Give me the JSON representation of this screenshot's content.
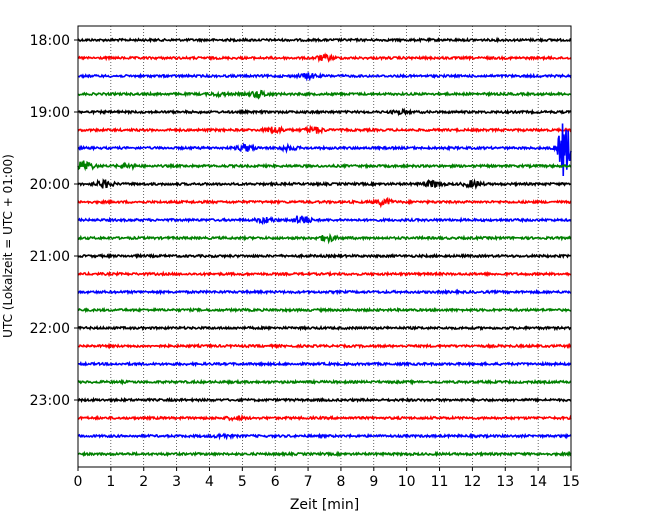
{
  "chart_data": {
    "type": "line",
    "xlabel": "Zeit  [min]",
    "ylabel": "UTC (Lokalzeit = UTC + 01:00)",
    "xlim": [
      0,
      15
    ],
    "x_ticks": [
      "0",
      "1",
      "2",
      "3",
      "4",
      "5",
      "6",
      "7",
      "8",
      "9",
      "10",
      "11",
      "12",
      "13",
      "14",
      "15"
    ],
    "y_tick_labels": [
      "18:00",
      "19:00",
      "20:00",
      "21:00",
      "22:00",
      "23:00"
    ],
    "grid": "vertical dotted lines at each minute",
    "trace_interval_min": 15,
    "first_trace": "18:00",
    "colors": [
      "#000000",
      "#ff0000",
      "#0000ff",
      "#008000"
    ],
    "traces": [
      {
        "start": "18:00",
        "events": []
      },
      {
        "start": "18:15",
        "events": [
          {
            "minute": 7.5,
            "amplitude": 0.25
          }
        ]
      },
      {
        "start": "18:30",
        "events": [
          {
            "minute": 7.0,
            "amplitude": 0.25
          }
        ]
      },
      {
        "start": "18:45",
        "events": [
          {
            "minute": 5.5,
            "amplitude": 0.3
          },
          {
            "minute": 4.3,
            "amplitude": 0.15
          }
        ]
      },
      {
        "start": "19:00",
        "events": [
          {
            "minute": 9.8,
            "amplitude": 0.15
          }
        ]
      },
      {
        "start": "19:15",
        "events": [
          {
            "minute": 6.0,
            "amplitude": 0.3
          },
          {
            "minute": 7.2,
            "amplitude": 0.3
          }
        ]
      },
      {
        "start": "19:30",
        "events": [
          {
            "minute": 5.1,
            "amplitude": 0.3
          },
          {
            "minute": 6.4,
            "amplitude": 0.2
          },
          {
            "minute": 14.8,
            "amplitude": 2.8
          }
        ]
      },
      {
        "start": "19:45",
        "events": [
          {
            "minute": 0.2,
            "amplitude": 0.5
          },
          {
            "minute": 1.5,
            "amplitude": 0.2
          }
        ]
      },
      {
        "start": "20:00",
        "events": [
          {
            "minute": 0.8,
            "amplitude": 0.35
          },
          {
            "minute": 10.8,
            "amplitude": 0.3
          },
          {
            "minute": 12.0,
            "amplitude": 0.3
          }
        ]
      },
      {
        "start": "20:15",
        "events": [
          {
            "minute": 9.3,
            "amplitude": 0.3
          }
        ]
      },
      {
        "start": "20:30",
        "events": [
          {
            "minute": 5.7,
            "amplitude": 0.25
          },
          {
            "minute": 6.8,
            "amplitude": 0.45
          }
        ]
      },
      {
        "start": "20:45",
        "events": [
          {
            "minute": 7.6,
            "amplitude": 0.3
          }
        ]
      },
      {
        "start": "21:00",
        "events": []
      },
      {
        "start": "21:15",
        "events": []
      },
      {
        "start": "21:30",
        "events": []
      },
      {
        "start": "21:45",
        "events": []
      },
      {
        "start": "22:00",
        "events": []
      },
      {
        "start": "22:15",
        "events": []
      },
      {
        "start": "22:30",
        "events": []
      },
      {
        "start": "22:45",
        "events": []
      },
      {
        "start": "23:00",
        "events": []
      },
      {
        "start": "23:15",
        "events": [
          {
            "minute": 4.8,
            "amplitude": 0.15
          }
        ]
      },
      {
        "start": "23:30",
        "events": [
          {
            "minute": 4.4,
            "amplitude": 0.15
          }
        ]
      },
      {
        "start": "23:45",
        "events": []
      }
    ]
  }
}
